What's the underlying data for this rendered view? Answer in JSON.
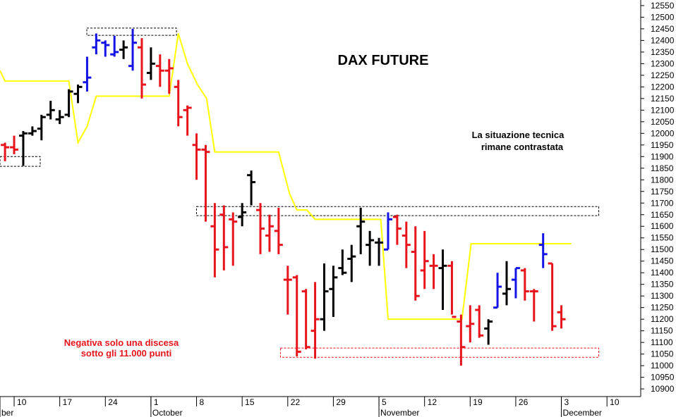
{
  "chart_data": {
    "type": "ohlc",
    "title": "DAX FUTURE",
    "annotations": [
      [
        "La situazione tecnica",
        "rimane contrastata"
      ],
      [
        "Negativa solo una discesa",
        "sotto gli 11.000 punti"
      ]
    ],
    "x": [
      -1,
      0,
      1,
      2,
      3,
      4,
      5,
      6,
      7,
      8,
      9,
      10,
      11,
      12,
      13,
      14,
      15,
      16,
      17,
      18,
      19,
      20,
      21,
      22,
      23,
      24,
      25,
      26,
      27,
      28,
      29,
      30,
      31,
      32,
      33,
      34,
      35,
      36,
      37,
      38,
      39,
      40,
      41,
      42,
      43,
      44,
      45,
      46,
      47,
      48,
      49,
      50,
      51,
      52,
      53,
      54,
      55,
      56,
      57,
      58,
      59,
      60
    ],
    "open": [
      11950,
      11940,
      11990,
      12000,
      12020,
      12080,
      12060,
      12080,
      12170,
      12220,
      12370,
      12390,
      12340,
      12360,
      12290,
      12370,
      12260,
      12290,
      12270,
      12200,
      12100,
      11950,
      11930,
      11600,
      11650,
      11630,
      11640,
      11820,
      11670,
      11560,
      11580,
      11370,
      11380,
      11320,
      11150,
      11200,
      11330,
      11420,
      11460,
      11600,
      11520,
      11530,
      11500,
      11640,
      11560,
      11490,
      11410,
      11430,
      11420,
      11430,
      11190,
      11170,
      11240,
      11160,
      11250,
      11310,
      11370,
      11410,
      11320,
      11520,
      11440,
      11230
    ],
    "high": [
      11960,
      11990,
      12010,
      12030,
      12080,
      12140,
      12100,
      12190,
      12210,
      12330,
      12430,
      12400,
      12420,
      12400,
      12450,
      12410,
      12370,
      12340,
      12320,
      12230,
      12120,
      12000,
      11950,
      11700,
      11690,
      11660,
      11700,
      11840,
      11700,
      11650,
      11680,
      11430,
      11390,
      11330,
      11360,
      11440,
      11430,
      11500,
      11520,
      11680,
      11580,
      11550,
      11660,
      11650,
      11620,
      11600,
      11580,
      11480,
      11500,
      11450,
      11220,
      11260,
      11260,
      11200,
      11400,
      11450,
      11420,
      11420,
      11330,
      11570,
      11440,
      11260
    ],
    "low": [
      11880,
      11910,
      11860,
      11990,
      11970,
      12060,
      12040,
      12070,
      12130,
      12180,
      12340,
      12330,
      12330,
      12320,
      12270,
      12150,
      12230,
      12200,
      12170,
      12030,
      11990,
      11800,
      11620,
      11380,
      11410,
      11430,
      11600,
      11690,
      11480,
      11490,
      11480,
      11220,
      11040,
      11070,
      11030,
      11150,
      11210,
      11390,
      11360,
      11480,
      11430,
      11430,
      11500,
      11520,
      11420,
      11280,
      11330,
      11330,
      11240,
      11220,
      11000,
      11100,
      11120,
      11090,
      11250,
      11260,
      11290,
      11280,
      11190,
      11420,
      11150,
      11160
    ],
    "close": [
      11940,
      11930,
      12000,
      12010,
      12070,
      12100,
      12070,
      12180,
      12200,
      12240,
      12400,
      12380,
      12350,
      12370,
      12390,
      12210,
      12300,
      12270,
      12280,
      12070,
      12110,
      11930,
      11920,
      11500,
      11510,
      11620,
      11660,
      11790,
      11590,
      11600,
      11520,
      11370,
      11060,
      11080,
      11200,
      11320,
      11380,
      11400,
      11470,
      11620,
      11540,
      11530,
      11630,
      11590,
      11520,
      11300,
      11450,
      11430,
      11430,
      11210,
      11080,
      11180,
      11130,
      11190,
      11340,
      11330,
      11420,
      11320,
      11320,
      11480,
      11170,
      11200
    ],
    "colors": [
      "#e8141c",
      "#e8141c",
      "#000000",
      "#000000",
      "#000000",
      "#000000",
      "#000000",
      "#000000",
      "#000000",
      "#1414e6",
      "#1414e6",
      "#1414e6",
      "#1414e6",
      "#000000",
      "#1414e6",
      "#e8141c",
      "#000000",
      "#e8141c",
      "#e8141c",
      "#e8141c",
      "#e8141c",
      "#e8141c",
      "#e8141c",
      "#e8141c",
      "#e8141c",
      "#e8141c",
      "#000000",
      "#000000",
      "#e8141c",
      "#e8141c",
      "#e8141c",
      "#e8141c",
      "#e8141c",
      "#e8141c",
      "#e8141c",
      "#000000",
      "#000000",
      "#000000",
      "#000000",
      "#000000",
      "#000000",
      "#000000",
      "#1414e6",
      "#e8141c",
      "#e8141c",
      "#e8141c",
      "#e8141c",
      "#e8141c",
      "#000000",
      "#e8141c",
      "#e8141c",
      "#e8141c",
      "#e8141c",
      "#000000",
      "#1414e6",
      "#000000",
      "#1414e6",
      "#e8141c",
      "#e8141c",
      "#1414e6",
      "#e8141c",
      "#e8141c"
    ],
    "line": {
      "color": "#ffff00",
      "x": [
        -1.55,
        -1,
        6,
        7,
        8,
        9,
        17,
        18,
        19,
        20.1,
        21.1,
        22,
        29,
        30.2,
        31,
        32.1,
        33,
        40.2,
        41,
        49.1,
        50.1,
        61.1
      ],
      "values": [
        12270,
        12225,
        12225,
        11960,
        12030,
        12160,
        12160,
        12430,
        12300,
        12210,
        12150,
        11920,
        11920,
        11740,
        11670,
        11670,
        11630,
        11630,
        11200,
        11200,
        11525,
        11525
      ]
    },
    "zones": [
      {
        "x": [
          -1.55,
          2.86
        ],
        "y": [
          11858,
          11900
        ],
        "color": "#000000"
      },
      {
        "x": [
          7.97,
          17.8
        ],
        "y": [
          12422,
          12453
        ],
        "color": "#000000"
      },
      {
        "x": [
          20,
          64.1
        ],
        "y": [
          11646,
          11685
        ],
        "color": "#000000"
      },
      {
        "x": [
          29.2,
          64.1
        ],
        "y": [
          11036,
          11076
        ],
        "color": "#e8141c"
      }
    ],
    "xlim": [
      -1.55,
      68.7
    ],
    "xticks": [
      {
        "value": 0,
        "label": "10"
      },
      {
        "value": 5,
        "label": "17"
      },
      {
        "value": 10,
        "label": "24"
      },
      {
        "value": 15,
        "label": "1"
      },
      {
        "value": 20,
        "label": "8"
      },
      {
        "value": 25,
        "label": "15"
      },
      {
        "value": 30,
        "label": "22"
      },
      {
        "value": 35,
        "label": "29"
      },
      {
        "value": 40,
        "label": "5"
      },
      {
        "value": 45,
        "label": "12"
      },
      {
        "value": 50,
        "label": "19"
      },
      {
        "value": 55,
        "label": "26"
      },
      {
        "value": 60,
        "label": "3"
      },
      {
        "value": 65,
        "label": "10"
      }
    ],
    "month_ticks": [
      {
        "value": -1.55,
        "label": "ber"
      },
      {
        "value": 15,
        "label": "October"
      },
      {
        "value": 40,
        "label": "November"
      },
      {
        "value": 60,
        "label": "December"
      }
    ],
    "ylim": [
      10867,
      12574
    ],
    "yticks": [
      10900,
      10950,
      11000,
      11050,
      11100,
      11150,
      11200,
      11250,
      11300,
      11350,
      11400,
      11450,
      11500,
      11550,
      11600,
      11650,
      11700,
      11750,
      11800,
      11850,
      11900,
      11950,
      12000,
      12050,
      12100,
      12150,
      12200,
      12250,
      12300,
      12350,
      12400,
      12450,
      12500,
      12550
    ],
    "y_axis_side": "right"
  }
}
